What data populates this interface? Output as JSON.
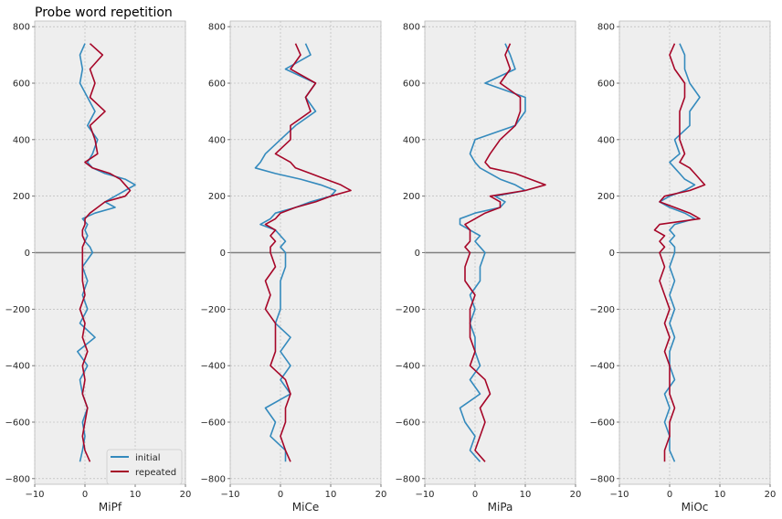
{
  "title": "Probe word repetition",
  "colors": {
    "initial": "#348ABD",
    "repeated": "#A60628",
    "panel_bg": "#EEEEEE",
    "grid": "#B2B2B2",
    "zero_line": "#808080"
  },
  "legend": {
    "placement": "lower-right",
    "entries": [
      "initial",
      "repeated"
    ]
  },
  "chart_data": [
    {
      "type": "line",
      "xlabel": "MiPf",
      "ylabel": "",
      "xlim": [
        -10,
        20
      ],
      "ylim": [
        -820,
        820
      ],
      "xticks": [
        -10,
        0,
        10,
        20
      ],
      "yticks": [
        -800,
        -600,
        -400,
        -200,
        0,
        200,
        400,
        600,
        800
      ],
      "grid": true,
      "hline": 0,
      "y": [
        740,
        700,
        650,
        600,
        550,
        500,
        450,
        400,
        350,
        320,
        300,
        280,
        260,
        240,
        220,
        200,
        180,
        160,
        140,
        120,
        100,
        80,
        60,
        40,
        20,
        0,
        -50,
        -100,
        -150,
        -200,
        -250,
        -300,
        -350,
        -400,
        -450,
        -500,
        -550,
        -600,
        -650,
        -700,
        -740
      ],
      "series": [
        {
          "name": "initial",
          "x": [
            0,
            -1,
            -0.5,
            -1,
            0.5,
            2,
            0.5,
            2.5,
            1.5,
            0.5,
            1.5,
            4,
            8,
            10,
            8,
            6,
            4,
            6,
            2,
            -0.5,
            0.5,
            0,
            0.5,
            0,
            1,
            1.5,
            -0.5,
            0.5,
            -0.5,
            0.5,
            -1,
            2,
            -1.5,
            0.5,
            -1,
            -0.5,
            0.5,
            -0.5,
            0,
            -0.5,
            -1
          ]
        },
        {
          "name": "repeated",
          "x": [
            1,
            3.5,
            1,
            2,
            1,
            4,
            1,
            2,
            2.5,
            0,
            1.5,
            5,
            7,
            8,
            9,
            8,
            4,
            2.5,
            1,
            0,
            0,
            -0.5,
            -0.5,
            0,
            -0.5,
            -0.5,
            -0.5,
            -0.5,
            0,
            -1,
            0,
            -0.5,
            0.5,
            -0.5,
            0,
            -0.5,
            0.5,
            0,
            -0.5,
            0,
            1
          ]
        }
      ]
    },
    {
      "type": "line",
      "xlabel": "MiCe",
      "ylabel": "",
      "xlim": [
        -10,
        20
      ],
      "ylim": [
        -820,
        820
      ],
      "xticks": [
        -10,
        0,
        10,
        20
      ],
      "yticks": [
        -800,
        -600,
        -400,
        -200,
        0,
        200,
        400,
        600,
        800
      ],
      "grid": true,
      "hline": 0,
      "y": [
        740,
        700,
        650,
        600,
        550,
        500,
        450,
        400,
        350,
        320,
        300,
        280,
        260,
        240,
        220,
        200,
        180,
        160,
        140,
        120,
        100,
        80,
        60,
        40,
        20,
        0,
        -50,
        -100,
        -150,
        -200,
        -250,
        -300,
        -350,
        -400,
        -450,
        -500,
        -550,
        -600,
        -650,
        -700,
        -740
      ],
      "series": [
        {
          "name": "initial",
          "x": [
            5,
            6,
            1,
            7,
            5,
            7,
            3,
            0,
            -3,
            -4,
            -5,
            -1,
            4,
            8,
            11,
            10,
            6,
            3,
            -1,
            -2,
            -4,
            -1,
            0,
            1,
            0,
            1,
            1,
            0,
            0,
            0,
            -1,
            2,
            0,
            2,
            0,
            2,
            -3,
            -1,
            -2,
            1,
            1
          ]
        },
        {
          "name": "repeated",
          "x": [
            3,
            4,
            2,
            7,
            5,
            6,
            2,
            2,
            -1,
            2,
            3,
            6,
            9,
            12,
            14,
            10,
            7,
            3,
            0,
            -1,
            -3,
            -1,
            -2,
            -1,
            -2,
            -2,
            -1,
            -3,
            -2,
            -3,
            -1,
            -1,
            -1,
            -2,
            1,
            2,
            1,
            1,
            0,
            1,
            2
          ]
        }
      ]
    },
    {
      "type": "line",
      "xlabel": "MiPa",
      "ylabel": "",
      "xlim": [
        -10,
        20
      ],
      "ylim": [
        -820,
        820
      ],
      "xticks": [
        -10,
        0,
        10,
        20
      ],
      "yticks": [
        -800,
        -600,
        -400,
        -200,
        0,
        200,
        400,
        600,
        800
      ],
      "grid": true,
      "hline": 0,
      "y": [
        740,
        700,
        650,
        600,
        550,
        500,
        450,
        400,
        350,
        320,
        300,
        280,
        260,
        240,
        220,
        200,
        180,
        160,
        140,
        120,
        100,
        80,
        60,
        40,
        20,
        0,
        -50,
        -100,
        -150,
        -200,
        -250,
        -300,
        -350,
        -400,
        -450,
        -500,
        -550,
        -600,
        -650,
        -700,
        -740
      ],
      "series": [
        {
          "name": "initial",
          "x": [
            6,
            7,
            8,
            2,
            10,
            10,
            8,
            0,
            -1,
            0,
            1,
            3,
            5,
            8,
            10,
            4,
            6,
            5,
            0,
            -3,
            -3,
            -1,
            1,
            0,
            1,
            2,
            1,
            1,
            -1,
            0,
            -1,
            0,
            0,
            1,
            -1,
            1,
            -3,
            -2,
            0,
            -1,
            1
          ]
        },
        {
          "name": "repeated",
          "x": [
            7,
            6,
            7,
            5,
            9,
            9,
            8,
            5,
            3,
            2,
            3,
            8,
            11,
            14,
            10,
            3,
            5,
            5,
            2,
            0,
            -2,
            -1,
            -1,
            -1,
            -2,
            -1,
            -2,
            -2,
            0,
            -1,
            -1,
            -1,
            0,
            -1,
            2,
            3,
            1,
            2,
            1,
            0,
            2
          ]
        }
      ]
    },
    {
      "type": "line",
      "xlabel": "MiOc",
      "ylabel": "",
      "xlim": [
        -10,
        20
      ],
      "ylim": [
        -820,
        820
      ],
      "xticks": [
        -10,
        0,
        10,
        20
      ],
      "yticks": [
        -800,
        -600,
        -400,
        -200,
        0,
        200,
        400,
        600,
        800
      ],
      "grid": true,
      "hline": 0,
      "y": [
        740,
        700,
        650,
        600,
        550,
        500,
        450,
        400,
        350,
        320,
        300,
        280,
        260,
        240,
        220,
        200,
        180,
        160,
        140,
        120,
        100,
        80,
        60,
        40,
        20,
        0,
        -50,
        -100,
        -150,
        -200,
        -250,
        -300,
        -350,
        -400,
        -450,
        -500,
        -550,
        -600,
        -650,
        -700,
        -740
      ],
      "series": [
        {
          "name": "initial",
          "x": [
            2,
            3,
            3,
            4,
            6,
            4,
            4,
            1,
            2,
            0,
            1,
            2,
            3,
            5,
            3,
            0,
            -2,
            0,
            3,
            5,
            1,
            0,
            1,
            0,
            1,
            1,
            0,
            1,
            0,
            1,
            0,
            1,
            0,
            0,
            1,
            -1,
            0,
            -1,
            0,
            0,
            1
          ]
        },
        {
          "name": "repeated",
          "x": [
            1,
            0,
            1,
            3,
            3,
            2,
            2,
            2,
            3,
            2,
            4,
            5,
            6,
            7,
            4,
            -1,
            -2,
            1,
            4,
            6,
            -2,
            -3,
            -1,
            -2,
            -1,
            -2,
            -1,
            -2,
            -1,
            0,
            -1,
            0,
            -1,
            0,
            0,
            0,
            1,
            0,
            0,
            -1,
            -1
          ]
        }
      ]
    }
  ]
}
